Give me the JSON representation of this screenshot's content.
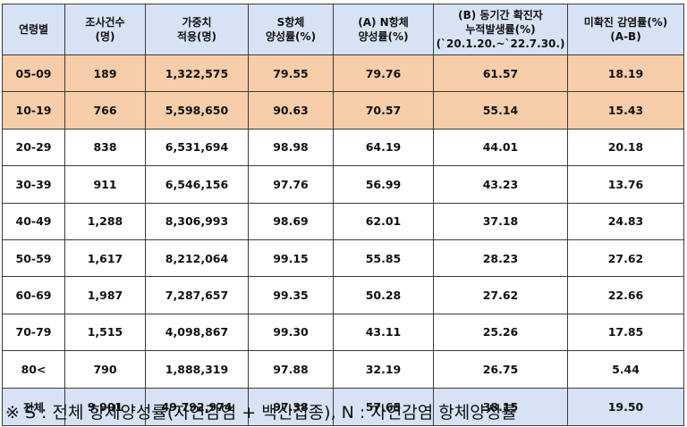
{
  "headers": [
    [
      "연령별"
    ],
    [
      "조사건수",
      "(명)"
    ],
    [
      "가중치",
      "적용(명)"
    ],
    [
      "S항체",
      "양성률(%)"
    ],
    [
      "(A) N항체",
      "양성률(%)"
    ],
    [
      "(B) 동기간 확진자",
      "누적발생률(%)",
      "(`20.1.20.~`22.7.30.)"
    ],
    [
      "미확진 감염률(%)",
      "(A-B)"
    ]
  ],
  "rows": [
    {
      "highlight": true,
      "cells": [
        "05-09",
        "189",
        "1,322,575",
        "79.55",
        "79.76",
        "61.57",
        "18.19"
      ]
    },
    {
      "highlight": true,
      "cells": [
        "10-19",
        "766",
        "5,598,650",
        "90.63",
        "70.57",
        "55.14",
        "15.43"
      ]
    },
    {
      "highlight": false,
      "cells": [
        "20-29",
        "838",
        "6,531,694",
        "98.98",
        "64.19",
        "44.01",
        "20.18"
      ]
    },
    {
      "highlight": false,
      "cells": [
        "30-39",
        "911",
        "6,546,156",
        "97.76",
        "56.99",
        "43.23",
        "13.76"
      ]
    },
    {
      "highlight": false,
      "cells": [
        "40-49",
        "1,288",
        "8,306,993",
        "98.69",
        "62.01",
        "37.18",
        "24.83"
      ]
    },
    {
      "highlight": false,
      "cells": [
        "50-59",
        "1,617",
        "8,212,064",
        "99.15",
        "55.85",
        "28.23",
        "27.62"
      ]
    },
    {
      "highlight": false,
      "cells": [
        "60-69",
        "1,987",
        "7,287,657",
        "99.35",
        "50.28",
        "27.62",
        "22.66"
      ]
    },
    {
      "highlight": false,
      "cells": [
        "70-79",
        "1,515",
        "4,098,867",
        "99.30",
        "43.11",
        "25.26",
        "17.85"
      ]
    },
    {
      "highlight": false,
      "cells": [
        "80<",
        "790",
        "1,888,319",
        "97.88",
        "32.19",
        "26.75",
        "5.44"
      ]
    }
  ],
  "total": [
    "전체",
    "9,901",
    "49,792,974",
    "97.38",
    "57.65",
    "38.15",
    "19.50"
  ],
  "footnote": "※ S : 전체 항체양성률(자연감염 + 백신접종), N : 자연감염 항체양성률",
  "colors": {
    "header_bg": "#d7e3f4",
    "highlight_bg": "#f8cdaa",
    "total_bg": "#d7e3f4",
    "border": "#3a3a3a"
  }
}
